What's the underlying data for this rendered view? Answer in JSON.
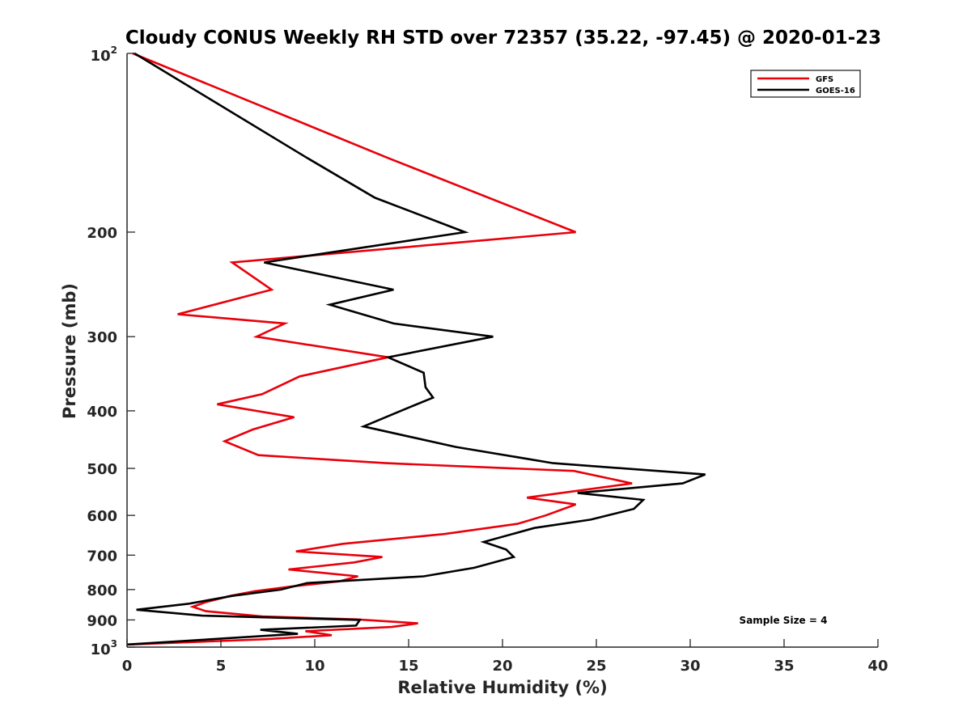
{
  "chart_data": {
    "type": "line",
    "title": "Cloudy CONUS Weekly RH STD over 72357 (35.22, -97.45) @ 2020-01-23",
    "xlabel": "Relative Humidity (%)",
    "ylabel": "Pressure (mb)",
    "xlim": [
      0,
      40
    ],
    "ylim": [
      100,
      1000
    ],
    "y_scale": "log",
    "y_reversed": true,
    "grid": false,
    "legend_position": "top-right",
    "x_ticks": [
      0,
      5,
      10,
      15,
      20,
      25,
      30,
      35,
      40
    ],
    "y_ticks": [
      {
        "value": 100,
        "base": "10",
        "exp": "2"
      },
      {
        "value": 200,
        "label": "200"
      },
      {
        "value": 300,
        "label": "300"
      },
      {
        "value": 400,
        "label": "400"
      },
      {
        "value": 500,
        "label": "500"
      },
      {
        "value": 600,
        "label": "600"
      },
      {
        "value": 700,
        "label": "700"
      },
      {
        "value": 800,
        "label": "800"
      },
      {
        "value": 900,
        "label": "900"
      },
      {
        "value": 1000,
        "base": "10",
        "exp": "3"
      }
    ],
    "annotation": "Sample Size = 4",
    "series": [
      {
        "name": "GFS",
        "color": "#e8000b",
        "points": [
          [
            0.3,
            100
          ],
          [
            13.9,
            150
          ],
          [
            23.9,
            200
          ],
          [
            5.6,
            225
          ],
          [
            7.7,
            250
          ],
          [
            2.7,
            275
          ],
          [
            8.4,
            285
          ],
          [
            6.9,
            300
          ],
          [
            13.9,
            325
          ],
          [
            9.2,
            350
          ],
          [
            7.2,
            375
          ],
          [
            4.8,
            390
          ],
          [
            8.9,
            410
          ],
          [
            6.7,
            430
          ],
          [
            5.2,
            450
          ],
          [
            7.0,
            475
          ],
          [
            13.8,
            490
          ],
          [
            23.8,
            505
          ],
          [
            26.9,
            530
          ],
          [
            21.3,
            560
          ],
          [
            23.9,
            575
          ],
          [
            22.3,
            600
          ],
          [
            20.8,
            620
          ],
          [
            16.9,
            645
          ],
          [
            11.5,
            670
          ],
          [
            9.0,
            690
          ],
          [
            13.6,
            705
          ],
          [
            12.1,
            720
          ],
          [
            8.6,
            740
          ],
          [
            12.3,
            760
          ],
          [
            11.3,
            775
          ],
          [
            8.8,
            790
          ],
          [
            6.8,
            805
          ],
          [
            5.5,
            820
          ],
          [
            4.2,
            840
          ],
          [
            3.5,
            855
          ],
          [
            4.2,
            870
          ],
          [
            7.2,
            888
          ],
          [
            12.2,
            898
          ],
          [
            15.5,
            912
          ],
          [
            14.1,
            925
          ],
          [
            9.5,
            940
          ],
          [
            10.9,
            955
          ],
          [
            7.3,
            970
          ],
          [
            0.1,
            990
          ]
        ]
      },
      {
        "name": "GOES-16",
        "color": "#000000",
        "points": [
          [
            0.4,
            100
          ],
          [
            9.6,
            150
          ],
          [
            13.2,
            175
          ],
          [
            18.0,
            200
          ],
          [
            7.3,
            225
          ],
          [
            14.2,
            250
          ],
          [
            10.8,
            265
          ],
          [
            14.2,
            285
          ],
          [
            19.5,
            300
          ],
          [
            13.9,
            325
          ],
          [
            15.8,
            345
          ],
          [
            15.9,
            365
          ],
          [
            16.3,
            380
          ],
          [
            15.0,
            395
          ],
          [
            12.6,
            425
          ],
          [
            17.5,
            460
          ],
          [
            22.7,
            490
          ],
          [
            30.8,
            512
          ],
          [
            29.6,
            530
          ],
          [
            24.0,
            550
          ],
          [
            27.5,
            565
          ],
          [
            27.0,
            585
          ],
          [
            24.7,
            610
          ],
          [
            21.7,
            630
          ],
          [
            19.0,
            665
          ],
          [
            20.2,
            685
          ],
          [
            20.6,
            705
          ],
          [
            18.5,
            735
          ],
          [
            15.8,
            760
          ],
          [
            9.6,
            780
          ],
          [
            8.2,
            800
          ],
          [
            5.6,
            820
          ],
          [
            3.3,
            845
          ],
          [
            0.5,
            865
          ],
          [
            4.0,
            885
          ],
          [
            12.4,
            900
          ],
          [
            12.2,
            920
          ],
          [
            7.1,
            935
          ],
          [
            9.1,
            950
          ],
          [
            0.0,
            990
          ]
        ]
      }
    ]
  }
}
